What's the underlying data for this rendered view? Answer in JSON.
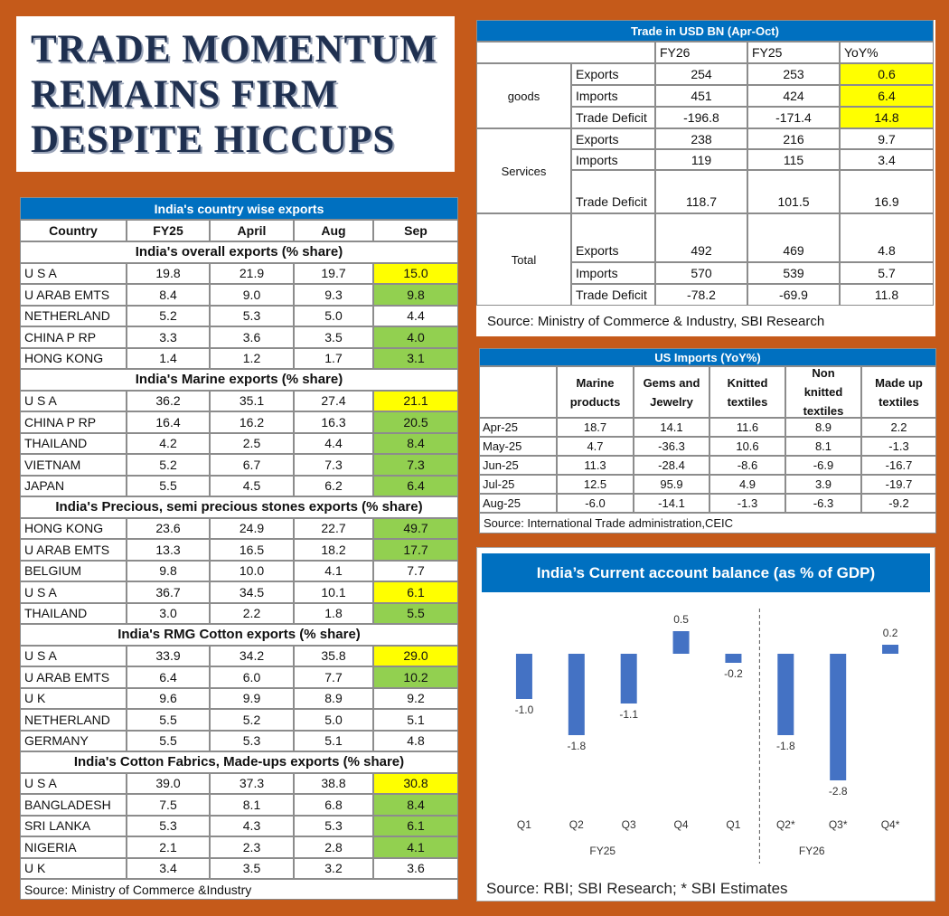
{
  "headline": [
    "TRADE MOMENTUM",
    "REMAINS FIRM",
    "DESPITE HICCUPS"
  ],
  "country_exports": {
    "title": "India's country wise exports",
    "headers": [
      "Country",
      "FY25",
      "April",
      "Aug",
      "Sep"
    ],
    "sections": [
      {
        "title": "India's overall exports (% share)",
        "rows": [
          {
            "cells": [
              "U S A",
              "19.8",
              "21.9",
              "19.7",
              "15.0"
            ],
            "highlight": "#ffff00"
          },
          {
            "cells": [
              "U ARAB EMTS",
              "8.4",
              "9.0",
              "9.3",
              "9.8"
            ],
            "highlight": "#92d050"
          },
          {
            "cells": [
              "NETHERLAND",
              "5.2",
              "5.3",
              "5.0",
              "4.4"
            ]
          },
          {
            "cells": [
              "CHINA P RP",
              "3.3",
              "3.6",
              "3.5",
              "4.0"
            ],
            "highlight": "#92d050"
          },
          {
            "cells": [
              "HONG KONG",
              "1.4",
              "1.2",
              "1.7",
              "3.1"
            ],
            "highlight": "#92d050"
          }
        ]
      },
      {
        "title": "India's Marine exports (% share)",
        "rows": [
          {
            "cells": [
              "U S A",
              "36.2",
              "35.1",
              "27.4",
              "21.1"
            ],
            "highlight": "#ffff00"
          },
          {
            "cells": [
              "CHINA P RP",
              "16.4",
              "16.2",
              "16.3",
              "20.5"
            ],
            "highlight": "#92d050"
          },
          {
            "cells": [
              "THAILAND",
              "4.2",
              "2.5",
              "4.4",
              "8.4"
            ],
            "highlight": "#92d050"
          },
          {
            "cells": [
              "VIETNAM",
              "5.2",
              "6.7",
              "7.3",
              "7.3"
            ],
            "highlight": "#92d050"
          },
          {
            "cells": [
              "JAPAN",
              "5.5",
              "4.5",
              "6.2",
              "6.4"
            ],
            "highlight": "#92d050"
          }
        ]
      },
      {
        "title": "India's Precious, semi precious stones exports (% share)",
        "rows": [
          {
            "cells": [
              "HONG KONG",
              "23.6",
              "24.9",
              "22.7",
              "49.7"
            ],
            "highlight": "#92d050"
          },
          {
            "cells": [
              "U ARAB EMTS",
              "13.3",
              "16.5",
              "18.2",
              "17.7"
            ],
            "highlight": "#92d050"
          },
          {
            "cells": [
              "BELGIUM",
              "9.8",
              "10.0",
              "4.1",
              "7.7"
            ]
          },
          {
            "cells": [
              "U S A",
              "36.7",
              "34.5",
              "10.1",
              "6.1"
            ],
            "highlight": "#ffff00"
          },
          {
            "cells": [
              "THAILAND",
              "3.0",
              "2.2",
              "1.8",
              "5.5"
            ],
            "highlight": "#92d050"
          }
        ]
      },
      {
        "title": "India's RMG Cotton exports (% share)",
        "rows": [
          {
            "cells": [
              "U S A",
              "33.9",
              "34.2",
              "35.8",
              "29.0"
            ],
            "highlight": "#ffff00"
          },
          {
            "cells": [
              "U ARAB EMTS",
              "6.4",
              "6.0",
              "7.7",
              "10.2"
            ],
            "highlight": "#92d050"
          },
          {
            "cells": [
              "U K",
              "9.6",
              "9.9",
              "8.9",
              "9.2"
            ]
          },
          {
            "cells": [
              "NETHERLAND",
              "5.5",
              "5.2",
              "5.0",
              "5.1"
            ]
          },
          {
            "cells": [
              "GERMANY",
              "5.5",
              "5.3",
              "5.1",
              "4.8"
            ]
          }
        ]
      },
      {
        "title": "India's Cotton Fabrics, Made-ups exports (% share)",
        "rows": [
          {
            "cells": [
              "U S A",
              "39.0",
              "37.3",
              "38.8",
              "30.8"
            ],
            "highlight": "#ffff00"
          },
          {
            "cells": [
              "BANGLADESH",
              "7.5",
              "8.1",
              "6.8",
              "8.4"
            ],
            "highlight": "#92d050"
          },
          {
            "cells": [
              "SRI LANKA",
              "5.3",
              "4.3",
              "5.3",
              "6.1"
            ],
            "highlight": "#92d050"
          },
          {
            "cells": [
              "NIGERIA",
              "2.1",
              "2.3",
              "2.8",
              "4.1"
            ],
            "highlight": "#92d050"
          },
          {
            "cells": [
              "U K",
              "3.4",
              "3.5",
              "3.2",
              "3.6"
            ]
          }
        ]
      }
    ],
    "source": "Source: Ministry of Commerce &Industry"
  },
  "trade": {
    "title": "Trade in USD BN (Apr-Oct)",
    "headers": [
      "FY26",
      "FY25",
      "YoY%"
    ],
    "groups": [
      {
        "name": "goods",
        "rows": [
          {
            "item": "Exports",
            "values": [
              "254",
              "253",
              "0.6"
            ],
            "highlight": "#ffff00"
          },
          {
            "item": "Imports",
            "values": [
              "451",
              "424",
              "6.4"
            ],
            "highlight": "#ffff00"
          },
          {
            "item": "Trade Deficit",
            "values": [
              "-196.8",
              "-171.4",
              "14.8"
            ],
            "highlight": "#ffff00"
          }
        ]
      },
      {
        "name": "Services",
        "rows": [
          {
            "item": "Exports",
            "values": [
              "238",
              "216",
              "9.7"
            ]
          },
          {
            "item": "Imports",
            "values": [
              "119",
              "115",
              "3.4"
            ]
          },
          {
            "item": "Trade Deficit",
            "values": [
              "118.7",
              "101.5",
              "16.9"
            ]
          }
        ]
      },
      {
        "name": "Total",
        "rows": [
          {
            "item": "Exports",
            "values": [
              "492",
              "469",
              "4.8"
            ]
          },
          {
            "item": "Imports",
            "values": [
              "570",
              "539",
              "5.7"
            ]
          },
          {
            "item": "Trade Deficit",
            "values": [
              "-78.2",
              "-69.9",
              "11.8"
            ]
          }
        ]
      }
    ],
    "source": "Source: Ministry of Commerce & Industry, SBI Research"
  },
  "us_imports": {
    "title": "US Imports (YoY%)",
    "headers": [
      "Marine products",
      "Gems and Jewelry",
      "Knitted textiles",
      "Non knitted textiles",
      "Made up textiles"
    ],
    "rows": [
      [
        "Apr-25",
        "18.7",
        "14.1",
        "11.6",
        "8.9",
        "2.2"
      ],
      [
        "May-25",
        "4.7",
        "-36.3",
        "10.6",
        "8.1",
        "-1.3"
      ],
      [
        "Jun-25",
        "11.3",
        "-28.4",
        "-8.6",
        "-6.9",
        "-16.7"
      ],
      [
        "Jul-25",
        "12.5",
        "95.9",
        "4.9",
        "3.9",
        "-19.7"
      ],
      [
        "Aug-25",
        "-6.0",
        "-14.1",
        "-1.3",
        "-6.3",
        "-9.2"
      ]
    ],
    "source": "Source: International Trade administration,CEIC"
  },
  "chart_data": {
    "type": "bar",
    "title": "India’s Current account balance (as % of GDP)",
    "categories": [
      "Q1",
      "Q2",
      "Q3",
      "Q4",
      "Q1",
      "Q2*",
      "Q3*",
      "Q4*"
    ],
    "groups": [
      "FY25",
      "FY26"
    ],
    "values": [
      -1.0,
      -1.8,
      -1.1,
      0.5,
      -0.2,
      -1.8,
      -2.8,
      0.2
    ],
    "value_labels": [
      "-1.0",
      "-1.8",
      "-1.1",
      "0.5",
      "-0.2",
      "-1.8",
      "-2.8",
      "0.2"
    ],
    "color": "#4472c4",
    "ylim": [
      -3.2,
      1.0
    ],
    "source": "Source: RBI; SBI Research; * SBI Estimates"
  }
}
